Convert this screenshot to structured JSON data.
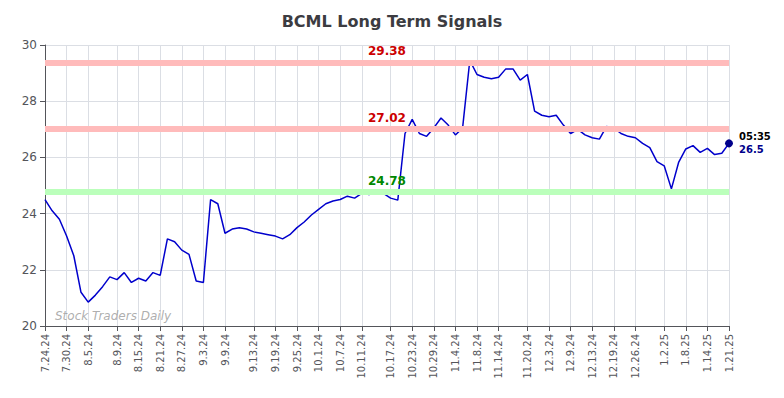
{
  "chart_data": {
    "type": "line",
    "title": "BCML Long Term Signals",
    "watermark": "Stock Traders Daily",
    "categories": [
      "7.24.24",
      null,
      null,
      "7.30.24",
      null,
      null,
      "8.5.24",
      null,
      null,
      null,
      "8.9.24",
      null,
      null,
      "8.15.24",
      null,
      null,
      "8.21.24",
      null,
      null,
      "8.27.24",
      null,
      null,
      "9.3.24",
      null,
      null,
      "9.9.24",
      null,
      null,
      null,
      "9.13.24",
      null,
      null,
      "9.19.24",
      null,
      null,
      "9.25.24",
      null,
      null,
      "10.1.24",
      null,
      null,
      "10.7.24",
      null,
      null,
      "10.11.24",
      null,
      null,
      null,
      "10.17.24",
      null,
      null,
      "10.23.24",
      null,
      null,
      "10.29.24",
      null,
      null,
      "11.4.24",
      null,
      null,
      "11.8.24",
      null,
      null,
      "11.14.24",
      null,
      null,
      null,
      "11.20.24",
      null,
      null,
      "12.3.24",
      null,
      null,
      "12.9.24",
      null,
      null,
      "12.13.24",
      null,
      null,
      "12.19.24",
      null,
      null,
      "12.26.24",
      null,
      null,
      null,
      "1.2.25",
      null,
      null,
      "1.8.25",
      null,
      null,
      "1.14.25",
      null,
      null,
      "1.21.25"
    ],
    "values": [
      24.5,
      24.1,
      23.8,
      23.2,
      22.5,
      21.2,
      20.85,
      21.1,
      21.4,
      21.75,
      21.65,
      21.9,
      21.55,
      21.7,
      21.6,
      21.9,
      21.8,
      23.1,
      23.0,
      22.7,
      22.55,
      21.6,
      21.55,
      24.5,
      24.35,
      23.3,
      23.45,
      23.5,
      23.45,
      23.35,
      23.3,
      23.25,
      23.2,
      23.1,
      23.25,
      23.5,
      23.7,
      23.95,
      24.15,
      24.35,
      24.45,
      24.5,
      24.62,
      24.55,
      24.72,
      24.68,
      24.75,
      24.72,
      24.55,
      24.48,
      26.85,
      27.35,
      26.85,
      26.75,
      27.05,
      27.4,
      27.15,
      26.8,
      27.05,
      29.45,
      28.95,
      28.85,
      28.8,
      28.85,
      29.15,
      29.15,
      28.75,
      28.95,
      27.65,
      27.5,
      27.45,
      27.5,
      27.15,
      26.85,
      27.0,
      26.8,
      26.7,
      26.65,
      27.1,
      27.05,
      26.85,
      26.75,
      26.7,
      26.5,
      26.35,
      25.85,
      25.7,
      24.88,
      25.82,
      26.3,
      26.42,
      26.18,
      26.32,
      26.1,
      26.15,
      26.5
    ],
    "color": "#0000cc",
    "endpoint_color": "#00008b",
    "annotations": [
      {
        "text": "05:35",
        "color": "#000000"
      },
      {
        "text": "26.5",
        "color": "#00008b"
      }
    ],
    "reference_lines": [
      {
        "value": 29.38,
        "color": "#ffbbbb",
        "label_color": "#cc0000"
      },
      {
        "value": 27.02,
        "color": "#ffbbbb",
        "label_color": "#cc0000"
      },
      {
        "value": 24.78,
        "color": "#bbffbb",
        "label_color": "#008800"
      }
    ],
    "ylim": [
      20,
      30
    ],
    "yticks": [
      20,
      22,
      24,
      26,
      28,
      30
    ],
    "grid": true
  }
}
